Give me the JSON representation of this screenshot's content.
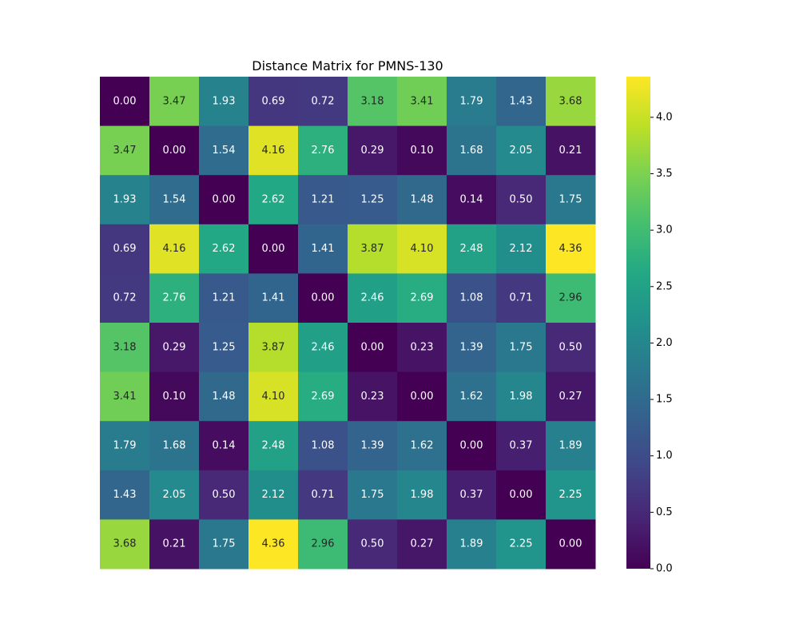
{
  "chart_data": {
    "type": "heatmap",
    "title": "Distance Matrix for PMNS-130",
    "colormap": "viridis",
    "vmin": 0.0,
    "vmax": 4.36,
    "value_format": "2 decimals",
    "x_tick_labels": [],
    "y_tick_labels": [],
    "matrix": [
      [
        0.0,
        3.47,
        1.93,
        0.69,
        0.72,
        3.18,
        3.41,
        1.79,
        1.43,
        3.68
      ],
      [
        3.47,
        0.0,
        1.54,
        4.16,
        2.76,
        0.29,
        0.1,
        1.68,
        2.05,
        0.21
      ],
      [
        1.93,
        1.54,
        0.0,
        2.62,
        1.21,
        1.25,
        1.48,
        0.14,
        0.5,
        1.75
      ],
      [
        0.69,
        4.16,
        2.62,
        0.0,
        1.41,
        3.87,
        4.1,
        2.48,
        2.12,
        4.36
      ],
      [
        0.72,
        2.76,
        1.21,
        1.41,
        0.0,
        2.46,
        2.69,
        1.08,
        0.71,
        2.96
      ],
      [
        3.18,
        0.29,
        1.25,
        3.87,
        2.46,
        0.0,
        0.23,
        1.39,
        1.75,
        0.5
      ],
      [
        3.41,
        0.1,
        1.48,
        4.1,
        2.69,
        0.23,
        0.0,
        1.62,
        1.98,
        0.27
      ],
      [
        1.79,
        1.68,
        0.14,
        2.48,
        1.08,
        1.39,
        1.62,
        0.0,
        0.37,
        1.89
      ],
      [
        1.43,
        2.05,
        0.5,
        2.12,
        0.71,
        1.75,
        1.98,
        0.37,
        0.0,
        2.25
      ],
      [
        3.68,
        0.21,
        1.75,
        4.36,
        2.96,
        0.5,
        0.27,
        1.89,
        2.25,
        0.0
      ]
    ],
    "colorbar": {
      "ticks": [
        0.0,
        0.5,
        1.0,
        1.5,
        2.0,
        2.5,
        3.0,
        3.5,
        4.0
      ],
      "tick_labels": [
        "0.0",
        "0.5",
        "1.0",
        "1.5",
        "2.0",
        "2.5",
        "3.0",
        "3.5",
        "4.0"
      ]
    }
  }
}
